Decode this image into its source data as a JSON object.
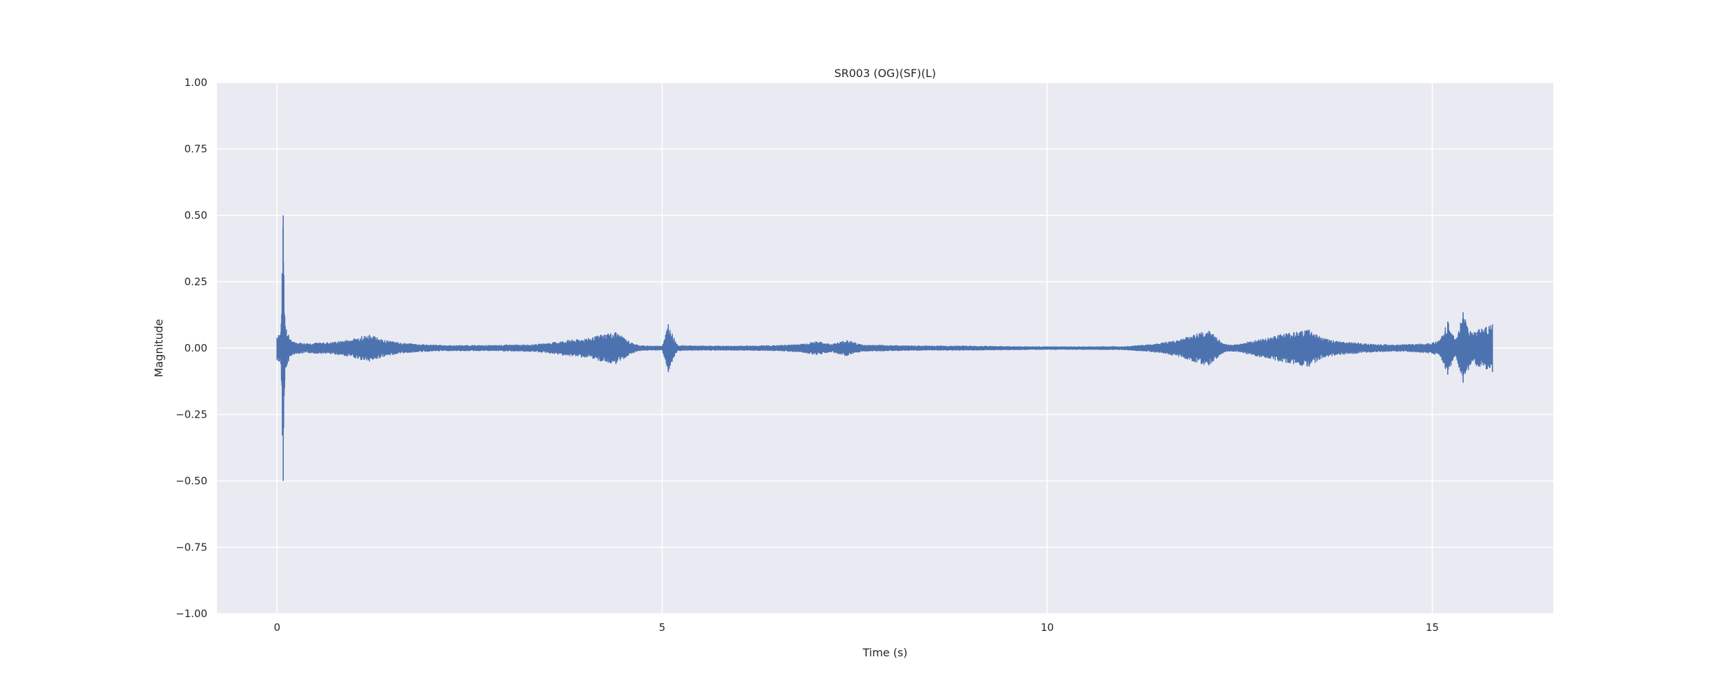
{
  "chart_data": {
    "type": "line",
    "title": "SR003 (OG)(SF)(L)",
    "xlabel": "Time (s)",
    "ylabel": "Magnitude",
    "xlim": [
      -0.78,
      16.57
    ],
    "ylim": [
      -1.0,
      1.0
    ],
    "xticks": [
      0,
      5,
      10,
      15
    ],
    "xtick_labels": [
      "0",
      "5",
      "10",
      "15"
    ],
    "yticks": [
      1.0,
      0.75,
      0.5,
      0.25,
      0.0,
      -0.25,
      -0.5,
      -0.75,
      -1.0
    ],
    "ytick_labels": [
      "1.00",
      "0.75",
      "0.50",
      "0.25",
      "0.00",
      "−0.25",
      "−0.50",
      "−0.75",
      "−1.00"
    ],
    "grid": true,
    "colors": {
      "plot_background": "#eaeaf2",
      "grid": "#ffffff",
      "line": "#4c72b0",
      "text": "#262626"
    },
    "series": [
      {
        "x": [
          0.0,
          0.02,
          0.05,
          0.08,
          0.1,
          0.12,
          0.15,
          0.18,
          0.2,
          0.25,
          0.3,
          0.4,
          0.5,
          0.6,
          0.7,
          0.8,
          0.9,
          1.0,
          1.1,
          1.2,
          1.3,
          1.4,
          1.5,
          1.6,
          1.8,
          2.0,
          2.2,
          2.4,
          2.6,
          2.8,
          3.0,
          3.2,
          3.4,
          3.6,
          3.8,
          4.0,
          4.1,
          4.2,
          4.3,
          4.4,
          4.5,
          4.6,
          4.7,
          4.8,
          5.0,
          5.08,
          5.2,
          5.5,
          6.0,
          6.5,
          6.8,
          7.0,
          7.2,
          7.4,
          7.6,
          8.0,
          8.5,
          9.0,
          9.5,
          10.0,
          10.5,
          11.0,
          11.4,
          11.6,
          11.8,
          11.9,
          12.0,
          12.1,
          12.2,
          12.3,
          12.4,
          12.5,
          12.7,
          12.9,
          13.0,
          13.1,
          13.2,
          13.3,
          13.4,
          13.5,
          13.6,
          13.8,
          14.0,
          14.2,
          14.5,
          14.8,
          15.0,
          15.1,
          15.2,
          15.3,
          15.4,
          15.5,
          15.6,
          15.7,
          15.78
        ],
        "y_max": [
          0.04,
          0.05,
          0.06,
          0.5,
          0.12,
          0.07,
          0.05,
          0.03,
          0.025,
          0.02,
          0.02,
          0.018,
          0.02,
          0.02,
          0.022,
          0.025,
          0.03,
          0.035,
          0.045,
          0.05,
          0.04,
          0.03,
          0.025,
          0.02,
          0.015,
          0.012,
          0.01,
          0.01,
          0.01,
          0.01,
          0.012,
          0.012,
          0.015,
          0.022,
          0.03,
          0.035,
          0.04,
          0.05,
          0.055,
          0.06,
          0.04,
          0.02,
          0.01,
          0.008,
          0.008,
          0.09,
          0.01,
          0.008,
          0.008,
          0.01,
          0.015,
          0.025,
          0.015,
          0.03,
          0.012,
          0.01,
          0.008,
          0.008,
          0.006,
          0.005,
          0.005,
          0.006,
          0.015,
          0.025,
          0.04,
          0.05,
          0.06,
          0.065,
          0.04,
          0.015,
          0.012,
          0.015,
          0.03,
          0.04,
          0.05,
          0.055,
          0.06,
          0.065,
          0.07,
          0.05,
          0.035,
          0.025,
          0.02,
          0.015,
          0.012,
          0.015,
          0.02,
          0.03,
          0.1,
          0.03,
          0.135,
          0.06,
          0.07,
          0.08,
          0.09
        ],
        "y_min": [
          -0.045,
          -0.05,
          -0.06,
          -0.5,
          -0.12,
          -0.07,
          -0.05,
          -0.03,
          -0.025,
          -0.02,
          -0.02,
          -0.018,
          -0.02,
          -0.02,
          -0.022,
          -0.025,
          -0.03,
          -0.035,
          -0.045,
          -0.05,
          -0.04,
          -0.03,
          -0.025,
          -0.02,
          -0.015,
          -0.012,
          -0.01,
          -0.01,
          -0.01,
          -0.01,
          -0.012,
          -0.012,
          -0.015,
          -0.022,
          -0.03,
          -0.035,
          -0.04,
          -0.05,
          -0.055,
          -0.06,
          -0.04,
          -0.02,
          -0.01,
          -0.008,
          -0.008,
          -0.09,
          -0.01,
          -0.008,
          -0.008,
          -0.01,
          -0.015,
          -0.025,
          -0.015,
          -0.03,
          -0.012,
          -0.01,
          -0.008,
          -0.008,
          -0.006,
          -0.005,
          -0.005,
          -0.006,
          -0.015,
          -0.025,
          -0.04,
          -0.05,
          -0.06,
          -0.065,
          -0.04,
          -0.015,
          -0.012,
          -0.015,
          -0.03,
          -0.04,
          -0.05,
          -0.055,
          -0.06,
          -0.065,
          -0.07,
          -0.05,
          -0.035,
          -0.025,
          -0.02,
          -0.015,
          -0.012,
          -0.015,
          -0.02,
          -0.03,
          -0.1,
          -0.03,
          -0.13,
          -0.06,
          -0.07,
          -0.08,
          -0.09
        ]
      }
    ]
  }
}
